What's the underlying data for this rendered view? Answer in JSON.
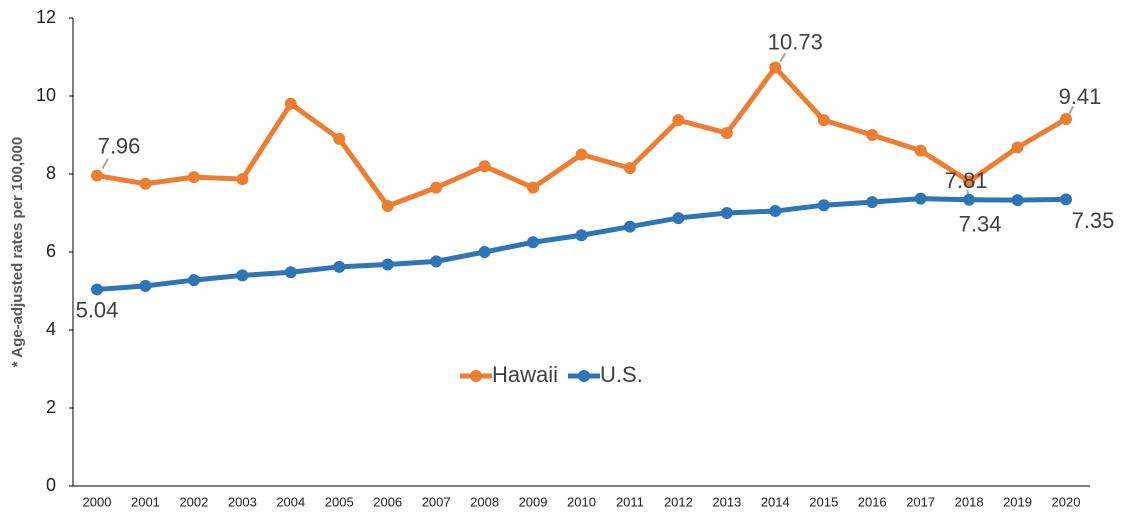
{
  "chart_data": {
    "type": "line",
    "y_label": "* Age-adjusted rates per 100,000",
    "categories": [
      "2000",
      "2001",
      "2002",
      "2003",
      "2004",
      "2005",
      "2006",
      "2007",
      "2008",
      "2009",
      "2010",
      "2011",
      "2012",
      "2013",
      "2014",
      "2015",
      "2016",
      "2017",
      "2018",
      "2019",
      "2020"
    ],
    "series": [
      {
        "name": "Hawaii",
        "color": "#ED7D31",
        "values": [
          7.96,
          7.75,
          7.92,
          7.87,
          9.8,
          8.9,
          7.18,
          7.65,
          8.2,
          7.65,
          8.5,
          8.15,
          9.38,
          9.05,
          10.73,
          9.38,
          9.0,
          8.6,
          7.81,
          8.68,
          9.41
        ],
        "value_labels": [
          "7.96",
          null,
          null,
          null,
          null,
          null,
          null,
          null,
          null,
          null,
          null,
          null,
          null,
          null,
          "10.73",
          null,
          null,
          null,
          "7.81",
          null,
          "9.41"
        ]
      },
      {
        "name": "U.S.",
        "color": "#2E75B6",
        "values": [
          5.04,
          5.13,
          5.28,
          5.4,
          5.48,
          5.62,
          5.68,
          5.76,
          6.0,
          6.25,
          6.43,
          6.65,
          6.87,
          7.0,
          7.05,
          7.2,
          7.28,
          7.37,
          7.34,
          7.33,
          7.35
        ],
        "value_labels": [
          "5.04",
          null,
          null,
          null,
          null,
          null,
          null,
          null,
          null,
          null,
          null,
          null,
          null,
          null,
          null,
          null,
          null,
          null,
          "7.34",
          null,
          "7.35"
        ]
      }
    ],
    "ylim": [
      0,
      12
    ],
    "yticks": [
      0,
      2,
      4,
      6,
      8,
      10,
      12
    ],
    "grid": false,
    "legend": "center"
  }
}
